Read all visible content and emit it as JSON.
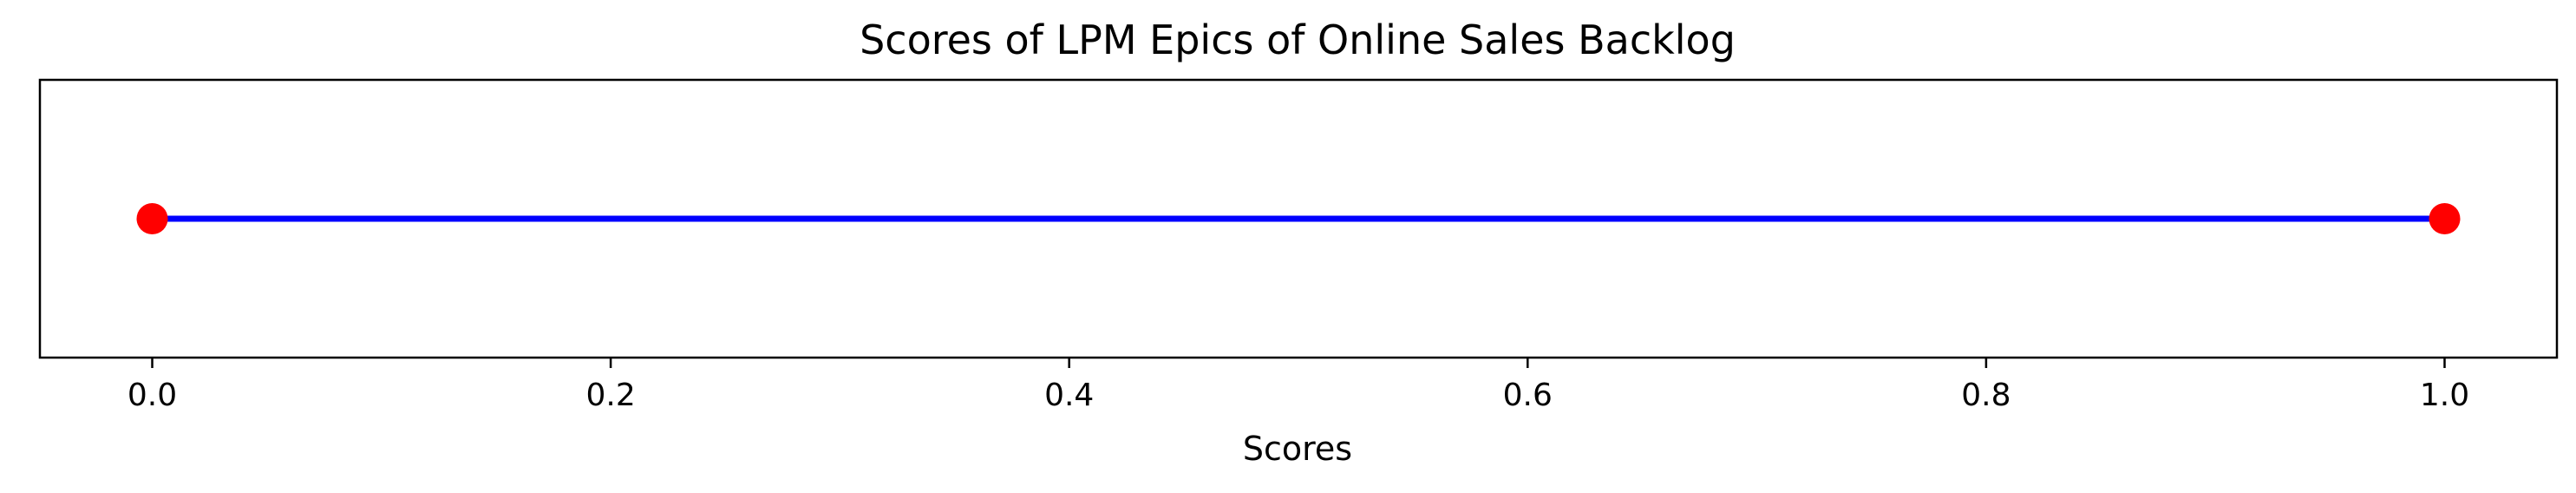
{
  "chart_data": {
    "type": "line",
    "title": "Scores of LPM Epics of Online Sales Backlog",
    "xlabel": "Scores",
    "ylabel": "",
    "xlim": [
      -0.049,
      1.049
    ],
    "x_ticks": [
      0.0,
      0.2,
      0.4,
      0.6,
      0.8,
      1.0
    ],
    "x_tick_labels": [
      "0.0",
      "0.2",
      "0.4",
      "0.6",
      "0.8",
      "1.0"
    ],
    "show_y_ticks": false,
    "grid": false,
    "legend": "none",
    "series": [
      {
        "x": [
          0.0,
          1.0
        ],
        "y": [
          0,
          0
        ],
        "line_color": "#0000ff",
        "marker_color": "#ff0000",
        "marker": "circle"
      }
    ]
  }
}
